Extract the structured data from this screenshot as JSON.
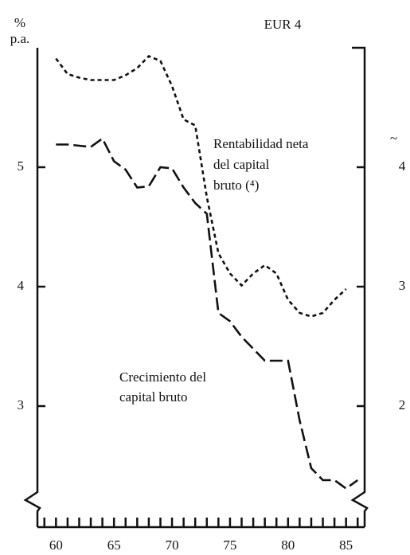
{
  "chart_data": {
    "type": "line",
    "title": "EUR 4",
    "ylabel": "% p.a.",
    "annotations": [
      "Rentabilidad neta",
      "del capital",
      "bruto (⁴)",
      "Crecimiento del",
      "capital bruto",
      "~"
    ],
    "x": [
      60,
      61,
      62,
      63,
      64,
      65,
      66,
      67,
      68,
      69,
      70,
      71,
      72,
      73,
      74,
      75,
      76,
      77,
      78,
      79,
      80,
      81,
      82,
      83,
      84,
      85,
      86
    ],
    "series": [
      {
        "name": "Crecimiento del capital bruto",
        "color": "#111111",
        "dash": "long",
        "axis": "y",
        "values": [
          5.19,
          5.19,
          5.18,
          5.17,
          5.24,
          5.05,
          4.98,
          4.83,
          4.84,
          5.0,
          4.99,
          4.83,
          4.7,
          4.61,
          3.78,
          3.71,
          3.58,
          3.48,
          3.38,
          3.38,
          3.38,
          2.88,
          2.48,
          2.38,
          2.38,
          2.31,
          2.38
        ]
      },
      {
        "name": "Rentabilidad neta del capital bruto",
        "color": "#111111",
        "dash": "short",
        "axis": "y2",
        "values": [
          4.91,
          4.78,
          4.75,
          4.73,
          4.73,
          4.73,
          4.77,
          4.83,
          4.93,
          4.89,
          4.68,
          4.4,
          4.35,
          3.75,
          3.28,
          3.11,
          3.01,
          3.11,
          3.18,
          3.11,
          2.89,
          2.78,
          2.75,
          2.78,
          2.89,
          2.98,
          null
        ]
      }
    ],
    "xlim": [
      58.4,
      86.6
    ],
    "xticks": [
      60,
      65,
      70,
      75,
      80,
      85
    ],
    "xminorticks": [
      59,
      60,
      61,
      62,
      63,
      64,
      65,
      66,
      67,
      68,
      69,
      70,
      71,
      72,
      73,
      74,
      75,
      76,
      77,
      78,
      79,
      80,
      81,
      82,
      83,
      84,
      85,
      86
    ],
    "ylim": [
      2.0,
      6.0
    ],
    "yticks": [
      3,
      4,
      5
    ],
    "y2lim": [
      1.0,
      5.0
    ],
    "y2ticks": [
      2,
      3,
      4
    ]
  }
}
